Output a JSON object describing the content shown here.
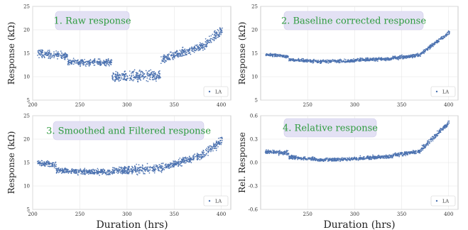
{
  "chart_data": [
    {
      "type": "scatter",
      "badge": "1. Raw response",
      "ylabel": "Response (kΩ)",
      "xlabel": "",
      "xlim": [
        200,
        410
      ],
      "ylim": [
        5,
        25
      ],
      "xticks": [
        200,
        250,
        300,
        350,
        400
      ],
      "yticks": [
        5,
        10,
        15,
        20,
        25
      ],
      "grid": true,
      "legend": "bottom-right",
      "series": [
        {
          "name": "LA",
          "color": "#4c72b0",
          "bands": [
            {
              "x_range": [
                205,
                223
              ],
              "center": [
                15.0,
                14.6
              ],
              "spread": 2.2
            },
            {
              "x_range": [
                223,
                237
              ],
              "center": [
                14.8,
                14.3
              ],
              "spread": 2.0
            },
            {
              "x_range": [
                237,
                262
              ],
              "center": [
                13.2,
                13.0
              ],
              "spread": 1.8
            },
            {
              "x_range": [
                262,
                284
              ],
              "center": [
                13.2,
                13.0
              ],
              "spread": 1.8
            },
            {
              "x_range": [
                284,
                336
              ],
              "center": [
                9.8,
                10.3
              ],
              "spread": 3.0
            },
            {
              "x_range": [
                336,
                380
              ],
              "center": [
                13.6,
                16.5
              ],
              "spread": 2.4
            },
            {
              "x_range": [
                380,
                401
              ],
              "center": [
                16.5,
                20.0
              ],
              "spread": 2.6
            }
          ]
        }
      ]
    },
    {
      "type": "scatter",
      "badge": "2. Baseline corrected response",
      "ylabel": "Response (kΩ)",
      "xlabel": "",
      "xlim": [
        200,
        410
      ],
      "ylim": [
        5,
        25
      ],
      "xticks": [
        250,
        300,
        350,
        400
      ],
      "yticks": [
        5,
        10,
        15,
        20,
        25
      ],
      "grid": true,
      "legend": "bottom-right",
      "series": [
        {
          "name": "LA",
          "color": "#4c72b0",
          "bands": [
            {
              "x_range": [
                205,
                230
              ],
              "center": [
                14.7,
                14.3
              ],
              "spread": 0.9
            },
            {
              "x_range": [
                230,
                260
              ],
              "center": [
                13.6,
                13.3
              ],
              "spread": 0.9
            },
            {
              "x_range": [
                260,
                300
              ],
              "center": [
                13.2,
                13.4
              ],
              "spread": 0.9
            },
            {
              "x_range": [
                300,
                340
              ],
              "center": [
                13.6,
                13.8
              ],
              "spread": 0.9
            },
            {
              "x_range": [
                340,
                370
              ],
              "center": [
                13.9,
                14.6
              ],
              "spread": 1.0
            },
            {
              "x_range": [
                370,
                401
              ],
              "center": [
                14.8,
                19.5
              ],
              "spread": 1.0
            }
          ]
        }
      ]
    },
    {
      "type": "scatter",
      "badge": "3. Smoothed and Filtered response",
      "ylabel": "Response (kΩ)",
      "xlabel": "Duration (hrs)",
      "xlim": [
        200,
        410
      ],
      "ylim": [
        5,
        25
      ],
      "xticks": [
        200,
        250,
        300,
        350,
        400
      ],
      "yticks": [
        5,
        10,
        15,
        20,
        25
      ],
      "grid": true,
      "legend": "bottom-right",
      "series": [
        {
          "name": "LA",
          "color": "#4c72b0",
          "bands": [
            {
              "x_range": [
                205,
                225
              ],
              "center": [
                14.9,
                14.5
              ],
              "spread": 2.0
            },
            {
              "x_range": [
                225,
                260
              ],
              "center": [
                13.3,
                13.0
              ],
              "spread": 1.6
            },
            {
              "x_range": [
                260,
                284
              ],
              "center": [
                13.0,
                13.0
              ],
              "spread": 1.6
            },
            {
              "x_range": [
                284,
                336
              ],
              "center": [
                13.2,
                13.8
              ],
              "spread": 2.4
            },
            {
              "x_range": [
                336,
                380
              ],
              "center": [
                13.8,
                16.6
              ],
              "spread": 2.0
            },
            {
              "x_range": [
                380,
                401
              ],
              "center": [
                16.6,
                19.8
              ],
              "spread": 2.4
            }
          ]
        }
      ]
    },
    {
      "type": "scatter",
      "badge": "4. Relative response",
      "ylabel": "Rel. Response",
      "xlabel": "Duration (hrs)",
      "xlim": [
        200,
        410
      ],
      "ylim": [
        -0.6,
        0.6
      ],
      "xticks": [
        250,
        300,
        350,
        400
      ],
      "yticks": [
        -0.6,
        -0.3,
        0.0,
        0.3,
        0.6
      ],
      "grid": true,
      "legend": "bottom-right",
      "series": [
        {
          "name": "LA",
          "color": "#4c72b0",
          "bands": [
            {
              "x_range": [
                205,
                230
              ],
              "center": [
                0.14,
                0.12
              ],
              "spread": 0.07
            },
            {
              "x_range": [
                230,
                260
              ],
              "center": [
                0.07,
                0.04
              ],
              "spread": 0.06
            },
            {
              "x_range": [
                260,
                300
              ],
              "center": [
                0.03,
                0.05
              ],
              "spread": 0.06
            },
            {
              "x_range": [
                300,
                340
              ],
              "center": [
                0.05,
                0.08
              ],
              "spread": 0.06
            },
            {
              "x_range": [
                340,
                370
              ],
              "center": [
                0.09,
                0.15
              ],
              "spread": 0.07
            },
            {
              "x_range": [
                370,
                401
              ],
              "center": [
                0.16,
                0.52
              ],
              "spread": 0.08
            }
          ]
        }
      ]
    }
  ]
}
